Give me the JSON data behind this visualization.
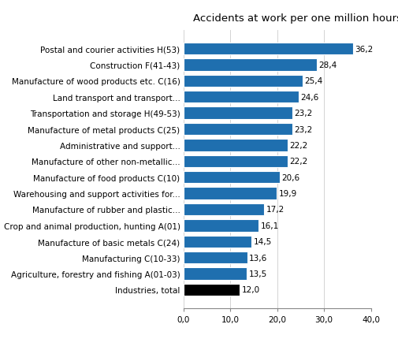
{
  "categories": [
    "Industries, total",
    "Agriculture, forestry and fishing A(01-03)",
    "Manufacturing C(10-33)",
    "Manufacture of basic metals C(24)",
    "Crop and animal production, hunting A(01)",
    "Manufacture of rubber and plastic...",
    "Warehousing and support activities for...",
    "Manufacture of food products C(10)",
    "Manufacture of other non-metallic...",
    "Administrative and support...",
    "Manufacture of metal products C(25)",
    "Transportation and storage H(49-53)",
    "Land transport and transport...",
    "Manufacture of wood products etc. C(16)",
    "Construction F(41-43)",
    "Postal and courier activities H(53)"
  ],
  "values": [
    12.0,
    13.5,
    13.6,
    14.5,
    16.1,
    17.2,
    19.9,
    20.6,
    22.2,
    22.2,
    23.2,
    23.2,
    24.6,
    25.4,
    28.4,
    36.2
  ],
  "bar_colors": [
    "#000000",
    "#1f6faf",
    "#1f6faf",
    "#1f6faf",
    "#1f6faf",
    "#1f6faf",
    "#1f6faf",
    "#1f6faf",
    "#1f6faf",
    "#1f6faf",
    "#1f6faf",
    "#1f6faf",
    "#1f6faf",
    "#1f6faf",
    "#1f6faf",
    "#1f6faf"
  ],
  "value_labels": [
    "12,0",
    "13,5",
    "13,6",
    "14,5",
    "16,1",
    "17,2",
    "19,9",
    "20,6",
    "22,2",
    "22,2",
    "23,2",
    "23,2",
    "24,6",
    "25,4",
    "28,4",
    "36,2"
  ],
  "title": "Accidents at work per one million hours worked",
  "xlim": [
    0,
    40
  ],
  "xticks": [
    0,
    10,
    20,
    30,
    40
  ],
  "xtick_labels": [
    "0,0",
    "10,0",
    "20,0",
    "30,0",
    "40,0"
  ],
  "bar_height": 0.75,
  "label_fontsize": 7.5,
  "title_fontsize": 9.5
}
